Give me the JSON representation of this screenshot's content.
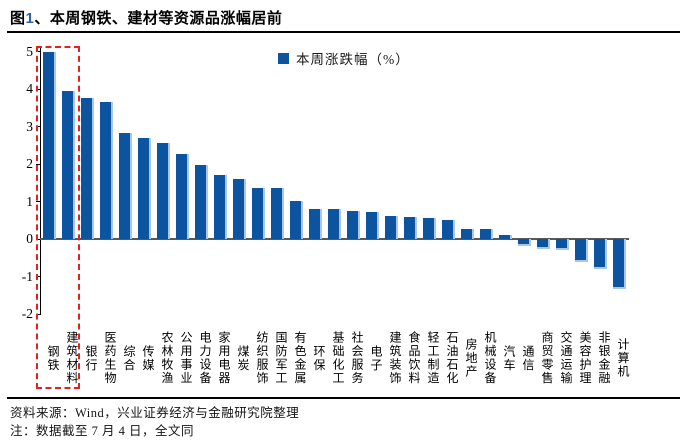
{
  "title": {
    "prefix": "图",
    "number": "1",
    "rest": "、本周钢铁、建材等资源品涨幅居前"
  },
  "legend": {
    "label": "本周涨跌幅（%）",
    "swatch_color": "#0D54A0"
  },
  "chart_data": {
    "type": "bar",
    "title": "本周钢铁、建材等资源品涨幅居前",
    "legend": [
      "本周涨跌幅（%）"
    ],
    "categories": [
      "钢铁",
      "建筑材料",
      "银行",
      "医药生物",
      "综合",
      "传媒",
      "农林牧渔",
      "公用事业",
      "电力设备",
      "家用电器",
      "煤炭",
      "纺织服饰",
      "国防军工",
      "有色金属",
      "环保",
      "基础化工",
      "社会服务",
      "电子",
      "建筑装饰",
      "食品饮料",
      "轻工制造",
      "石油石化",
      "房地产",
      "机械设备",
      "汽车",
      "通信",
      "商贸零售",
      "交通运输",
      "美容护理",
      "非银金融",
      "计算机"
    ],
    "values": [
      5.0,
      3.95,
      3.77,
      3.65,
      2.82,
      2.7,
      2.55,
      2.26,
      1.97,
      1.72,
      1.59,
      1.36,
      1.35,
      1.02,
      0.8,
      0.79,
      0.74,
      0.72,
      0.62,
      0.6,
      0.56,
      0.51,
      0.27,
      0.26,
      0.11,
      -0.13,
      -0.21,
      -0.23,
      -0.56,
      -0.74,
      -1.27
    ],
    "ylabel": "",
    "xlabel": "",
    "ylim": [
      -2,
      5
    ],
    "yticks": [
      5,
      4,
      3,
      2,
      1,
      0,
      -1,
      -2
    ],
    "grid": false,
    "legend_position": "top-center",
    "bar_color": "#0D54A0",
    "bar_edge_color": "#A9C7E8",
    "highlight": {
      "categories": [
        "钢铁",
        "建筑材料"
      ],
      "style": "red-dashed-box",
      "color": "#E02222"
    }
  },
  "footer": {
    "source": "资料来源：Wind，兴业证券经济与金融研究院整理",
    "note": "注：数据截至 7 月 4 日，全文同"
  }
}
